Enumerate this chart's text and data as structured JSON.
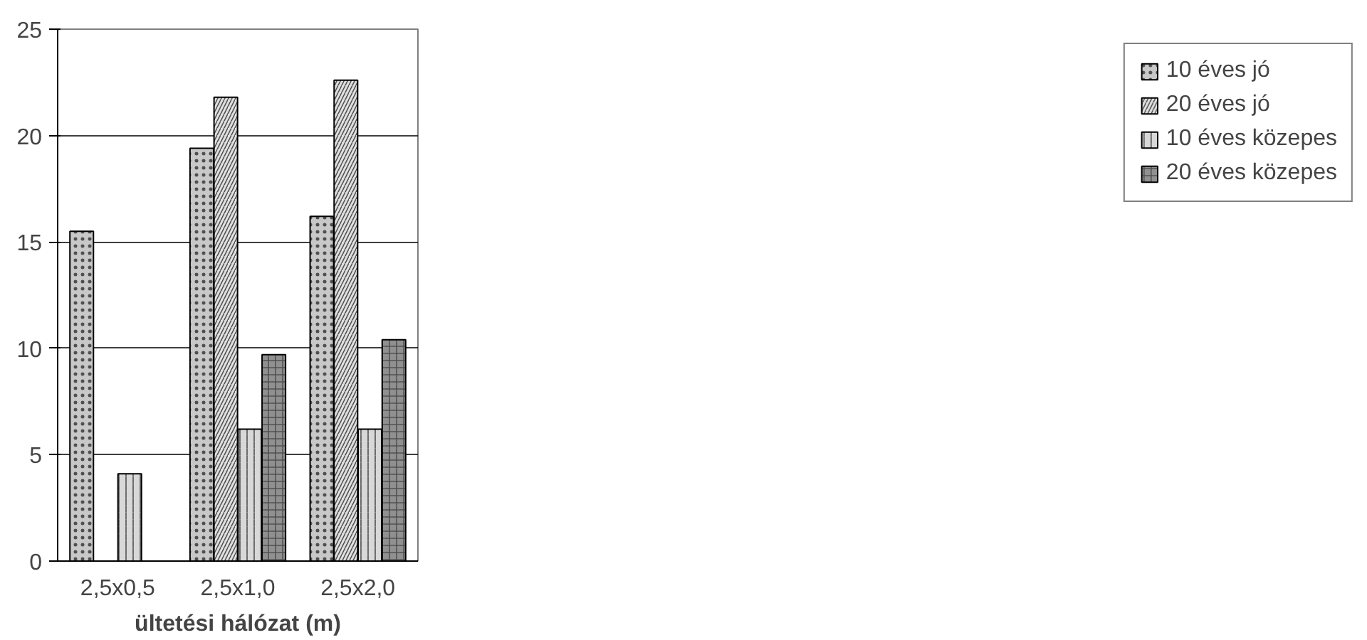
{
  "chart_data": {
    "type": "bar",
    "xlabel": "ültetési hálózat (m)",
    "categories": [
      "2,5x0,5",
      "2,5x1,0",
      "2,5x2,0"
    ],
    "series": [
      {
        "name": "10 éves jó",
        "color": "#c8c8c8",
        "values": [
          15.5,
          19.4,
          16.2
        ]
      },
      {
        "name": "20 éves jó",
        "color": "#e0e0e0",
        "values": [
          null,
          21.8,
          22.6
        ]
      },
      {
        "name": "10 éves közepes",
        "color": "#d8d8d8",
        "values": [
          4.1,
          6.2,
          6.2
        ]
      },
      {
        "name": "20 éves közepes",
        "color": "#909090",
        "values": [
          null,
          9.7,
          10.4
        ]
      }
    ],
    "ylim": [
      0,
      25
    ],
    "yticks": [
      0,
      5,
      10,
      15,
      20,
      25
    ],
    "grid": "y",
    "legend": "right"
  }
}
